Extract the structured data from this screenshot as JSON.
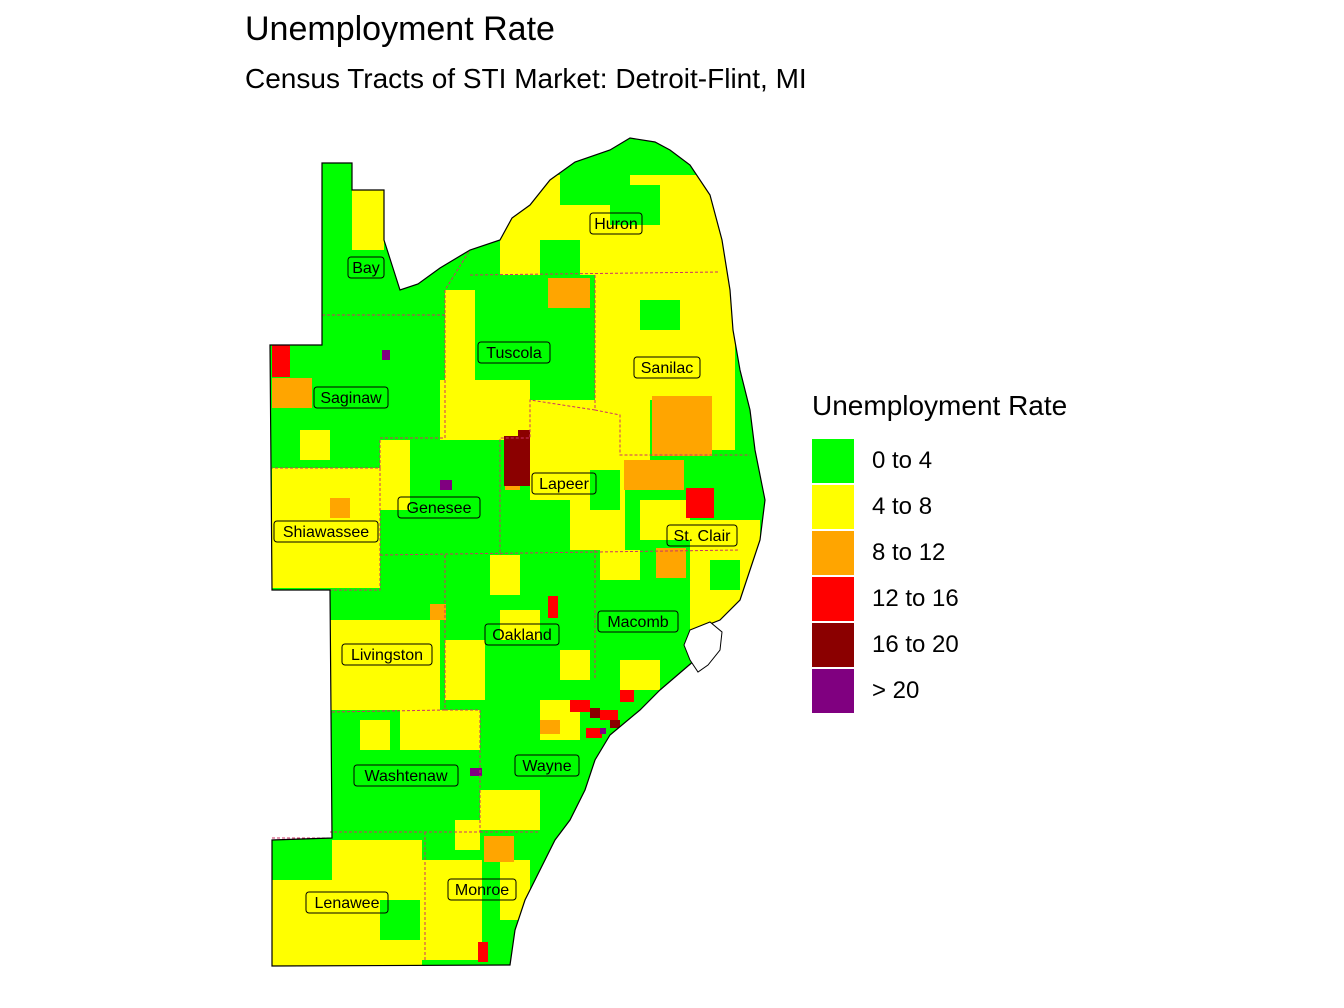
{
  "title": "Unemployment Rate",
  "subtitle": "Census Tracts of STI Market: Detroit-Flint, MI",
  "legend": {
    "title": "Unemployment Rate",
    "items": [
      {
        "label": "0 to 4",
        "color": "#00FF00"
      },
      {
        "label": "4 to 8",
        "color": "#FFFF00"
      },
      {
        "label": "8 to 12",
        "color": "#FFA500"
      },
      {
        "label": "12 to 16",
        "color": "#FF0000"
      },
      {
        "label": "16 to 20",
        "color": "#8B0000"
      },
      {
        "label": "> 20",
        "color": "#800080"
      }
    ]
  },
  "counties": [
    "Huron",
    "Bay",
    "Tuscola",
    "Sanilac",
    "Saginaw",
    "Lapeer",
    "Genesee",
    "St. Clair",
    "Shiawassee",
    "Macomb",
    "Oakland",
    "Livingston",
    "Wayne",
    "Washtenaw",
    "Monroe",
    "Lenawee"
  ],
  "colors": {
    "border": "#000000",
    "county_line": "#cc3366",
    "water": "#ffffff"
  }
}
